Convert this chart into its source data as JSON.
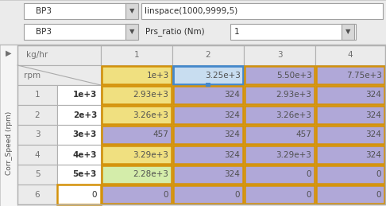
{
  "bg_color": "#dcdcdc",
  "dialog_bg": "#ebebeb",
  "side_panel_bg": "#f5f5f5",
  "side_label": "Corr_Speed (rpm)",
  "col_values": [
    "1e+3",
    "3.25e+3",
    "5.50e+3",
    "7.75e+3"
  ],
  "row_labels": [
    "1",
    "2",
    "3",
    "4",
    "5",
    "6"
  ],
  "row_values": [
    "1e+3",
    "2e+3",
    "3e+3",
    "4e+3",
    "5e+3",
    "0"
  ],
  "table_data": [
    [
      "2.93e+3",
      "324",
      "2.93e+3",
      "324"
    ],
    [
      "3.26e+3",
      "324",
      "3.26e+3",
      "324"
    ],
    [
      "457",
      "324",
      "457",
      "324"
    ],
    [
      "3.29e+3",
      "324",
      "3.29e+3",
      "324"
    ],
    [
      "2.28e+3",
      "324",
      "0",
      "0"
    ],
    [
      "0",
      "0",
      "0",
      "0"
    ]
  ],
  "cell_colors": [
    [
      "#f0e080",
      "#b0a8d8",
      "#b0a8d8",
      "#b0a8d8"
    ],
    [
      "#f0e080",
      "#b0a8d8",
      "#b0a8d8",
      "#b0a8d8"
    ],
    [
      "#b0a8d8",
      "#b0a8d8",
      "#b0a8d8",
      "#b0a8d8"
    ],
    [
      "#f0e080",
      "#b0a8d8",
      "#b0a8d8",
      "#b0a8d8"
    ],
    [
      "#d4edaa",
      "#b0a8d8",
      "#b0a8d8",
      "#b0a8d8"
    ],
    [
      "#b0a8d8",
      "#b0a8d8",
      "#b0a8d8",
      "#b0a8d8"
    ]
  ],
  "col_hdr_colors": [
    "#f0e080",
    "#c8ddf0",
    "#b0a8d8",
    "#b0a8d8"
  ],
  "orange_border": "#d4920a",
  "blue_border": "#4488cc",
  "grid_color": "#b0b0b0",
  "header_bg": "#ebebeb",
  "white_bg": "#ffffff",
  "header_text": "#707070",
  "cell_text": "#505050",
  "bold_text": "#303030"
}
